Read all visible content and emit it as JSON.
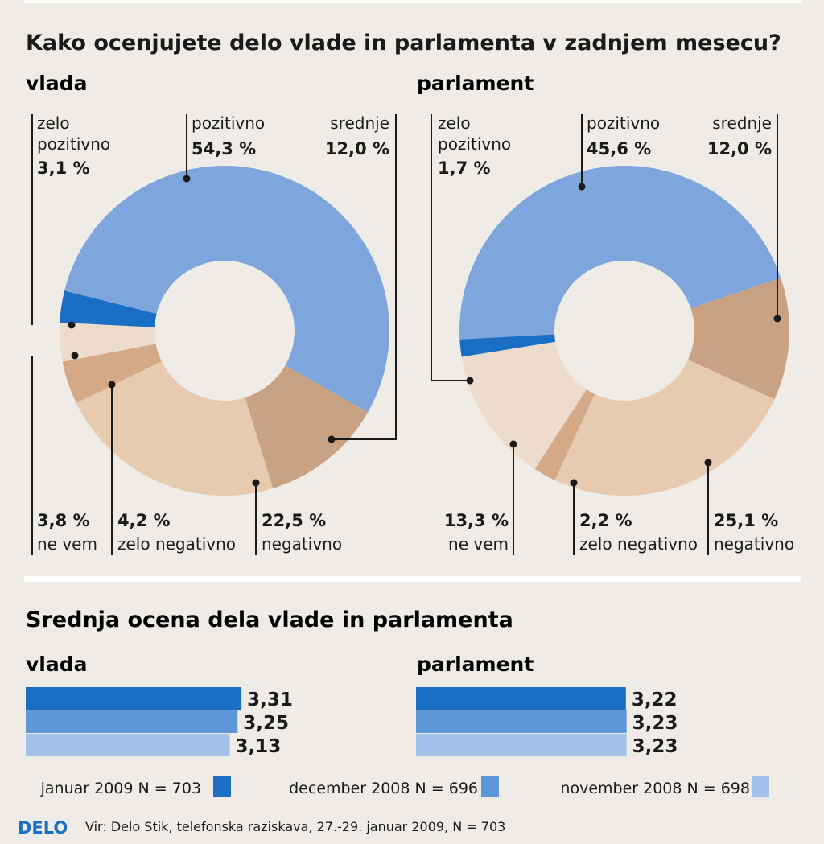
{
  "sections": {
    "top_title": "Kako ocenjujete delo vlade in parlamenta v zadnjem mesecu?",
    "bottom_title": "Srednja ocena dela vlade in parlamenta"
  },
  "footer": {
    "logo": "DELO",
    "source": "Vir: Delo Stik, telefonska raziskava, 27.-29. januar 2009, N = 703"
  },
  "colors": {
    "background": "#efebe6",
    "zelo_pozitivno": "#1a6fc4",
    "pozitivno": "#7ea6dc",
    "srednje": "#c9a283",
    "negativno": "#e6cbb0",
    "zelo_negativno": "#d4a987",
    "ne_vem": "#eddccb",
    "januar": "#1a6fc4",
    "december": "#5d96d9",
    "november": "#a3c2ea"
  },
  "chart_data": [
    {
      "type": "pie",
      "subtype": "donut",
      "title": "vlada",
      "slices": [
        {
          "key": "pozitivno",
          "label": "pozitivno",
          "value": 54.3,
          "value_text": "54,3 %"
        },
        {
          "key": "srednje",
          "label": "srednje",
          "value": 12.0,
          "value_text": "12,0 %"
        },
        {
          "key": "negativno",
          "label": "negativno",
          "value": 22.5,
          "value_text": "22,5 %"
        },
        {
          "key": "zelo_negativno",
          "label": "zelo negativno",
          "value": 4.2,
          "value_text": "4,2 %"
        },
        {
          "key": "ne_vem",
          "label": "ne vem",
          "value": 3.8,
          "value_text": "3,8 %"
        },
        {
          "key": "zelo_pozitivno",
          "label": "zelo pozitivno",
          "value": 3.1,
          "value_text": "3,1 %"
        }
      ]
    },
    {
      "type": "pie",
      "subtype": "donut",
      "title": "parlament",
      "slices": [
        {
          "key": "pozitivno",
          "label": "pozitivno",
          "value": 45.6,
          "value_text": "45,6 %"
        },
        {
          "key": "srednje",
          "label": "srednje",
          "value": 12.0,
          "value_text": "12,0 %"
        },
        {
          "key": "negativno",
          "label": "negativno",
          "value": 25.1,
          "value_text": "25,1 %"
        },
        {
          "key": "zelo_negativno",
          "label": "zelo negativno",
          "value": 2.2,
          "value_text": "2,2 %"
        },
        {
          "key": "ne_vem",
          "label": "ne vem",
          "value": 13.3,
          "value_text": "13,3 %"
        },
        {
          "key": "zelo_pozitivno",
          "label": "zelo pozitivno",
          "value": 1.7,
          "value_text": "1,7 %"
        }
      ]
    },
    {
      "type": "bar",
      "orientation": "horizontal",
      "title": "vlada",
      "categories": [
        "januar 2009",
        "december 2008",
        "november 2008"
      ],
      "values": [
        3.31,
        3.25,
        3.13
      ],
      "value_texts": [
        "3,31",
        "3,25",
        "3,13"
      ]
    },
    {
      "type": "bar",
      "orientation": "horizontal",
      "title": "parlament",
      "categories": [
        "januar 2009",
        "december 2008",
        "november 2008"
      ],
      "values": [
        3.22,
        3.23,
        3.23
      ],
      "value_texts": [
        "3,22",
        "3,23",
        "3,23"
      ]
    }
  ],
  "legend": [
    {
      "key": "januar",
      "label": "januar 2009 N = 703"
    },
    {
      "key": "december",
      "label": "december 2008 N = 696"
    },
    {
      "key": "november",
      "label": "november 2008 N = 698"
    }
  ]
}
